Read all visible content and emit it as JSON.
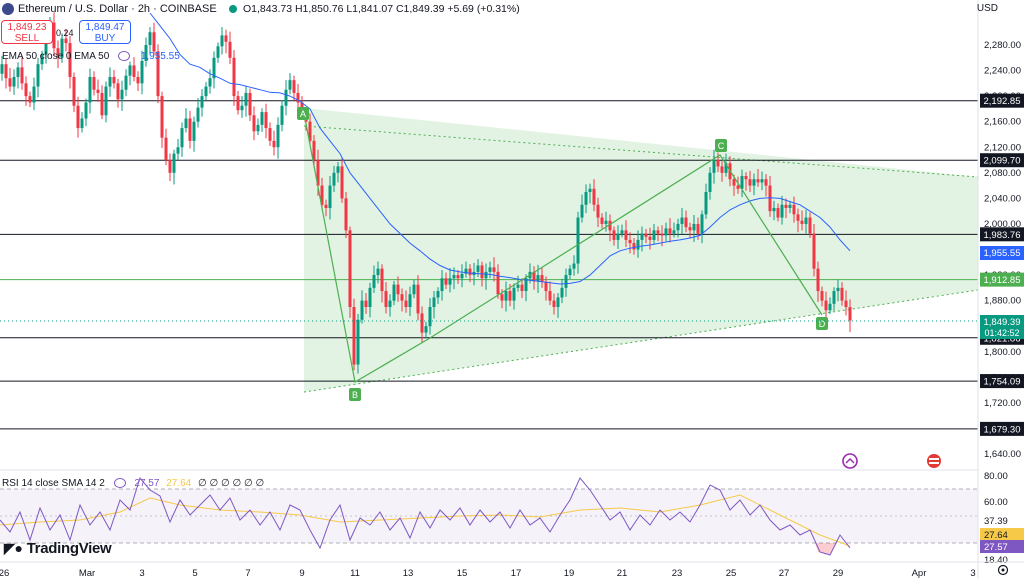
{
  "header": {
    "title": "Ethereum / U.S. Dollar · 2h · COINBASE",
    "ohlc": "O1,843.73 H1,850.76 L1,841.07 C1,849.39 +5.69 (+0.31%)",
    "sell_price": "1,849.23",
    "sell_label": "SELL",
    "spread": "0.24",
    "buy_price": "1,849.47",
    "buy_label": "BUY",
    "ema_label": "EMA 50 close 0 EMA 50",
    "ema_value": "1,955.55",
    "currency": "USD"
  },
  "rsi": {
    "label": "RSI 14 close SMA 14 2",
    "value": "27.57",
    "sma_value": "27.64",
    "placeholders": "∅ ∅ ∅ ∅ ∅ ∅",
    "axis": [
      "80.00",
      "60.00",
      "37.39",
      "27.64",
      "27.57",
      "18.40"
    ]
  },
  "brand": "TradingView",
  "colors": {
    "up": "#089981",
    "down": "#f23645",
    "ema": "#2962ff",
    "rsi": "#7e57c2",
    "rsi_sma": "#f7c948",
    "pattern": "#4caf50"
  },
  "chart_data": {
    "type": "candlestick",
    "symbol": "ETHUSD",
    "timeframe": "2h",
    "ylim": [
      1600,
      2320
    ],
    "y_ticks": [
      2280,
      2240,
      2200,
      2160,
      2120,
      2080,
      2040,
      2000,
      1960,
      1920,
      1880,
      1840,
      1800,
      1760,
      1720,
      1680,
      1640
    ],
    "x_ticks": [
      "26",
      "Mar",
      "3",
      "5",
      "7",
      "9",
      "11",
      "13",
      "15",
      "17",
      "19",
      "21",
      "23",
      "25",
      "27",
      "29",
      "Apr",
      "3"
    ],
    "horizontal_levels": [
      "2,192.85",
      "2,099.70",
      "1,983.76",
      "1,912.85",
      "1,821.86",
      "1,754.09",
      "1,679.30"
    ],
    "price_labels": {
      "last": "1,849.39",
      "countdown": "01:42:52",
      "ema": "1,955.55"
    },
    "pattern_points": [
      {
        "label": "A",
        "x": "Mar 9",
        "y": 2180
      },
      {
        "label": "B",
        "x": "Mar 11",
        "y": 1754
      },
      {
        "label": "C",
        "x": "Mar 24",
        "y": 2100
      },
      {
        "label": "D",
        "x": "Mar 28",
        "y": 1860
      }
    ],
    "price_path": [
      [
        0,
        2235
      ],
      [
        4,
        2250
      ],
      [
        8,
        2228
      ],
      [
        12,
        2215
      ],
      [
        16,
        2230
      ],
      [
        20,
        2245
      ],
      [
        24,
        2220
      ],
      [
        28,
        2200
      ],
      [
        32,
        2190
      ],
      [
        36,
        2215
      ],
      [
        40,
        2250
      ],
      [
        44,
        2265
      ],
      [
        48,
        2300
      ],
      [
        52,
        2315
      ],
      [
        56,
        2275
      ],
      [
        60,
        2260
      ],
      [
        64,
        2290
      ],
      [
        68,
        2283
      ],
      [
        72,
        2230
      ],
      [
        76,
        2185
      ],
      [
        80,
        2150
      ],
      [
        84,
        2165
      ],
      [
        88,
        2190
      ],
      [
        92,
        2230
      ],
      [
        96,
        2210
      ],
      [
        100,
        2205
      ],
      [
        104,
        2170
      ],
      [
        108,
        2215
      ],
      [
        112,
        2230
      ],
      [
        116,
        2220
      ],
      [
        120,
        2195
      ],
      [
        124,
        2210
      ],
      [
        128,
        2232
      ],
      [
        132,
        2248
      ],
      [
        136,
        2230
      ],
      [
        140,
        2220
      ],
      [
        144,
        2255
      ],
      [
        148,
        2280
      ],
      [
        152,
        2300
      ],
      [
        156,
        2270
      ],
      [
        160,
        2200
      ],
      [
        164,
        2135
      ],
      [
        168,
        2100
      ],
      [
        172,
        2080
      ],
      [
        176,
        2110
      ],
      [
        180,
        2120
      ],
      [
        184,
        2150
      ],
      [
        188,
        2165
      ],
      [
        192,
        2130
      ],
      [
        196,
        2160
      ],
      [
        200,
        2182
      ],
      [
        204,
        2200
      ],
      [
        208,
        2215
      ],
      [
        212,
        2228
      ],
      [
        216,
        2260
      ],
      [
        220,
        2278
      ],
      [
        224,
        2295
      ],
      [
        228,
        2285
      ],
      [
        232,
        2260
      ],
      [
        236,
        2200
      ],
      [
        240,
        2178
      ],
      [
        244,
        2185
      ],
      [
        248,
        2205
      ],
      [
        252,
        2170
      ],
      [
        256,
        2145
      ],
      [
        260,
        2155
      ],
      [
        264,
        2175
      ],
      [
        268,
        2150
      ],
      [
        272,
        2130
      ],
      [
        276,
        2120
      ],
      [
        280,
        2155
      ],
      [
        284,
        2185
      ],
      [
        288,
        2210
      ],
      [
        292,
        2225
      ],
      [
        296,
        2205
      ],
      [
        300,
        2190
      ],
      [
        304,
        2175
      ],
      [
        308,
        2160
      ],
      [
        312,
        2130
      ],
      [
        316,
        2100
      ],
      [
        320,
        2060
      ],
      [
        324,
        2030
      ],
      [
        328,
        2025
      ],
      [
        332,
        2060
      ],
      [
        336,
        2080
      ],
      [
        340,
        2090
      ],
      [
        344,
        2040
      ],
      [
        348,
        1990
      ],
      [
        352,
        1870
      ],
      [
        356,
        1780
      ],
      [
        360,
        1850
      ],
      [
        364,
        1880
      ],
      [
        368,
        1870
      ],
      [
        372,
        1900
      ],
      [
        376,
        1920
      ],
      [
        380,
        1930
      ],
      [
        384,
        1895
      ],
      [
        388,
        1870
      ],
      [
        392,
        1880
      ],
      [
        396,
        1905
      ],
      [
        400,
        1890
      ],
      [
        404,
        1880
      ],
      [
        408,
        1870
      ],
      [
        412,
        1890
      ],
      [
        416,
        1905
      ],
      [
        420,
        1860
      ],
      [
        424,
        1830
      ],
      [
        428,
        1840
      ],
      [
        432,
        1870
      ],
      [
        436,
        1885
      ],
      [
        440,
        1895
      ],
      [
        444,
        1915
      ],
      [
        448,
        1905
      ],
      [
        452,
        1915
      ],
      [
        456,
        1920
      ],
      [
        460,
        1915
      ],
      [
        464,
        1922
      ],
      [
        468,
        1930
      ],
      [
        472,
        1920
      ],
      [
        476,
        1925
      ],
      [
        480,
        1935
      ],
      [
        484,
        1915
      ],
      [
        488,
        1925
      ],
      [
        492,
        1932
      ],
      [
        496,
        1925
      ],
      [
        500,
        1890
      ],
      [
        504,
        1880
      ],
      [
        508,
        1895
      ],
      [
        512,
        1880
      ],
      [
        516,
        1900
      ],
      [
        520,
        1905
      ],
      [
        524,
        1895
      ],
      [
        528,
        1915
      ],
      [
        532,
        1925
      ],
      [
        536,
        1910
      ],
      [
        540,
        1920
      ],
      [
        544,
        1910
      ],
      [
        548,
        1895
      ],
      [
        552,
        1880
      ],
      [
        556,
        1870
      ],
      [
        560,
        1885
      ],
      [
        564,
        1900
      ],
      [
        568,
        1920
      ],
      [
        572,
        1930
      ],
      [
        576,
        1938
      ],
      [
        580,
        2010
      ],
      [
        584,
        2030
      ],
      [
        588,
        2050
      ],
      [
        592,
        2055
      ],
      [
        596,
        2030
      ],
      [
        600,
        2010
      ],
      [
        604,
        2000
      ],
      [
        608,
        2005
      ],
      [
        612,
        1990
      ],
      [
        616,
        1975
      ],
      [
        620,
        1985
      ],
      [
        624,
        1990
      ],
      [
        628,
        1975
      ],
      [
        632,
        1970
      ],
      [
        636,
        1960
      ],
      [
        640,
        1975
      ],
      [
        644,
        1985
      ],
      [
        648,
        1980
      ],
      [
        652,
        1975
      ],
      [
        656,
        1990
      ],
      [
        660,
        1985
      ],
      [
        664,
        1982
      ],
      [
        668,
        1993
      ],
      [
        672,
        1985
      ],
      [
        676,
        1990
      ],
      [
        680,
        2000
      ],
      [
        684,
        2010
      ],
      [
        688,
        1995
      ],
      [
        692,
        1990
      ],
      [
        696,
        2000
      ],
      [
        700,
        1985
      ],
      [
        704,
        2015
      ],
      [
        708,
        2050
      ],
      [
        712,
        2080
      ],
      [
        716,
        2100
      ],
      [
        720,
        2090
      ],
      [
        724,
        2080
      ],
      [
        728,
        2095
      ],
      [
        732,
        2070
      ],
      [
        736,
        2060
      ],
      [
        740,
        2055
      ],
      [
        744,
        2075
      ],
      [
        748,
        2070
      ],
      [
        752,
        2060
      ],
      [
        756,
        2070
      ],
      [
        760,
        2065
      ],
      [
        764,
        2070
      ],
      [
        768,
        2060
      ],
      [
        772,
        2020
      ],
      [
        776,
        2025
      ],
      [
        780,
        2010
      ],
      [
        784,
        2030
      ],
      [
        788,
        2025
      ],
      [
        792,
        2030
      ],
      [
        796,
        2015
      ],
      [
        800,
        2005
      ],
      [
        804,
        2000
      ],
      [
        808,
        2010
      ],
      [
        812,
        1985
      ],
      [
        816,
        1930
      ],
      [
        820,
        1895
      ],
      [
        824,
        1880
      ],
      [
        828,
        1865
      ],
      [
        832,
        1875
      ],
      [
        836,
        1895
      ],
      [
        840,
        1900
      ],
      [
        844,
        1880
      ],
      [
        848,
        1870
      ],
      [
        852,
        1849
      ]
    ],
    "ema_path": [
      [
        150,
        2330
      ],
      [
        160,
        2310
      ],
      [
        170,
        2290
      ],
      [
        180,
        2265
      ],
      [
        190,
        2250
      ],
      [
        200,
        2245
      ],
      [
        210,
        2235
      ],
      [
        220,
        2228
      ],
      [
        230,
        2220
      ],
      [
        240,
        2218
      ],
      [
        250,
        2214
      ],
      [
        260,
        2210
      ],
      [
        270,
        2206
      ],
      [
        280,
        2205
      ],
      [
        290,
        2200
      ],
      [
        300,
        2192
      ],
      [
        310,
        2180
      ],
      [
        320,
        2150
      ],
      [
        330,
        2130
      ],
      [
        340,
        2110
      ],
      [
        350,
        2080
      ],
      [
        360,
        2060
      ],
      [
        370,
        2040
      ],
      [
        380,
        2020
      ],
      [
        390,
        2000
      ],
      [
        400,
        1985
      ],
      [
        410,
        1970
      ],
      [
        420,
        1958
      ],
      [
        430,
        1945
      ],
      [
        440,
        1935
      ],
      [
        450,
        1928
      ],
      [
        460,
        1925
      ],
      [
        470,
        1923
      ],
      [
        480,
        1922
      ],
      [
        490,
        1921
      ],
      [
        500,
        1918
      ],
      [
        510,
        1916
      ],
      [
        520,
        1913
      ],
      [
        530,
        1912
      ],
      [
        540,
        1910
      ],
      [
        550,
        1908
      ],
      [
        560,
        1906
      ],
      [
        570,
        1907
      ],
      [
        580,
        1910
      ],
      [
        590,
        1920
      ],
      [
        600,
        1935
      ],
      [
        610,
        1950
      ],
      [
        620,
        1958
      ],
      [
        630,
        1962
      ],
      [
        640,
        1965
      ],
      [
        650,
        1967
      ],
      [
        660,
        1970
      ],
      [
        670,
        1973
      ],
      [
        680,
        1975
      ],
      [
        690,
        1978
      ],
      [
        700,
        1982
      ],
      [
        710,
        1995
      ],
      [
        720,
        2010
      ],
      [
        730,
        2022
      ],
      [
        740,
        2030
      ],
      [
        750,
        2036
      ],
      [
        760,
        2040
      ],
      [
        770,
        2041
      ],
      [
        780,
        2040
      ],
      [
        790,
        2035
      ],
      [
        800,
        2030
      ],
      [
        810,
        2020
      ],
      [
        820,
        2010
      ],
      [
        830,
        1995
      ],
      [
        840,
        1975
      ],
      [
        850,
        1958
      ]
    ],
    "rsi_path": [
      [
        0,
        520
      ],
      [
        10,
        532
      ],
      [
        20,
        512
      ],
      [
        30,
        540
      ],
      [
        40,
        508
      ],
      [
        50,
        530
      ],
      [
        60,
        515
      ],
      [
        70,
        540
      ],
      [
        80,
        505
      ],
      [
        90,
        525
      ],
      [
        100,
        512
      ],
      [
        110,
        530
      ],
      [
        120,
        500
      ],
      [
        130,
        510
      ],
      [
        140,
        478
      ],
      [
        150,
        490
      ],
      [
        160,
        496
      ],
      [
        170,
        522
      ],
      [
        180,
        500
      ],
      [
        190,
        515
      ],
      [
        200,
        505
      ],
      [
        210,
        495
      ],
      [
        220,
        510
      ],
      [
        230,
        498
      ],
      [
        240,
        520
      ],
      [
        250,
        510
      ],
      [
        260,
        525
      ],
      [
        270,
        512
      ],
      [
        280,
        530
      ],
      [
        290,
        505
      ],
      [
        300,
        510
      ],
      [
        310,
        530
      ],
      [
        320,
        548
      ],
      [
        330,
        520
      ],
      [
        340,
        505
      ],
      [
        350,
        540
      ],
      [
        360,
        518
      ],
      [
        370,
        525
      ],
      [
        380,
        512
      ],
      [
        390,
        530
      ],
      [
        400,
        518
      ],
      [
        410,
        538
      ],
      [
        420,
        512
      ],
      [
        430,
        528
      ],
      [
        440,
        510
      ],
      [
        450,
        520
      ],
      [
        460,
        508
      ],
      [
        470,
        525
      ],
      [
        480,
        510
      ],
      [
        490,
        522
      ],
      [
        500,
        512
      ],
      [
        510,
        528
      ],
      [
        520,
        510
      ],
      [
        530,
        525
      ],
      [
        540,
        518
      ],
      [
        550,
        532
      ],
      [
        560,
        515
      ],
      [
        570,
        500
      ],
      [
        580,
        478
      ],
      [
        590,
        490
      ],
      [
        600,
        505
      ],
      [
        610,
        520
      ],
      [
        620,
        512
      ],
      [
        630,
        530
      ],
      [
        640,
        515
      ],
      [
        650,
        525
      ],
      [
        660,
        510
      ],
      [
        670,
        520
      ],
      [
        680,
        512
      ],
      [
        690,
        522
      ],
      [
        700,
        505
      ],
      [
        710,
        485
      ],
      [
        720,
        490
      ],
      [
        730,
        510
      ],
      [
        740,
        500
      ],
      [
        750,
        515
      ],
      [
        760,
        505
      ],
      [
        770,
        520
      ],
      [
        780,
        530
      ],
      [
        790,
        525
      ],
      [
        800,
        535
      ],
      [
        810,
        530
      ],
      [
        820,
        552
      ],
      [
        830,
        555
      ],
      [
        840,
        535
      ],
      [
        850,
        548
      ]
    ],
    "rsi_sma_path": [
      [
        0,
        525
      ],
      [
        40,
        522
      ],
      [
        80,
        520
      ],
      [
        120,
        512
      ],
      [
        150,
        498
      ],
      [
        180,
        505
      ],
      [
        220,
        510
      ],
      [
        260,
        512
      ],
      [
        300,
        515
      ],
      [
        340,
        522
      ],
      [
        380,
        520
      ],
      [
        420,
        518
      ],
      [
        460,
        516
      ],
      [
        500,
        515
      ],
      [
        540,
        517
      ],
      [
        580,
        510
      ],
      [
        620,
        508
      ],
      [
        660,
        512
      ],
      [
        700,
        505
      ],
      [
        740,
        495
      ],
      [
        780,
        515
      ],
      [
        820,
        535
      ],
      [
        850,
        546
      ]
    ]
  }
}
